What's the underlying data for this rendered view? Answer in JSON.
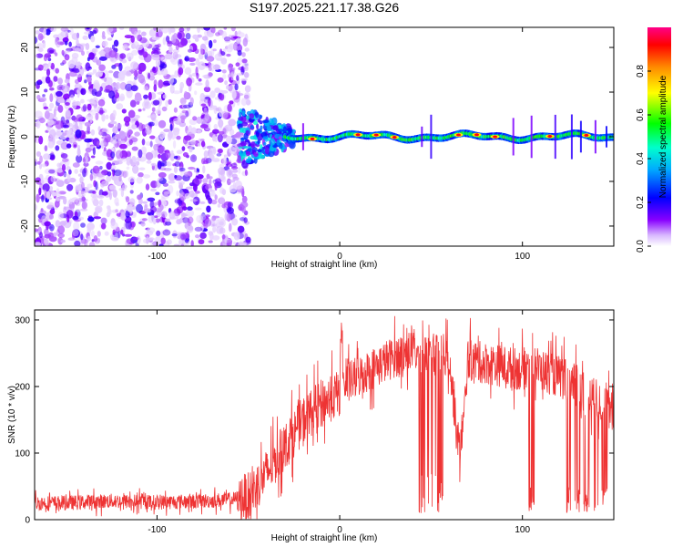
{
  "chart_data": [
    {
      "type": "heatmap",
      "title": "S197.2025.221.17.38.G26",
      "xlabel": "Height of straight line (km)",
      "ylabel": "Frequency (Hz)",
      "xlim": [
        -167,
        150
      ],
      "ylim": [
        -24.5,
        24.5
      ],
      "xticks": [
        -100,
        0,
        100
      ],
      "yticks": [
        -20,
        -10,
        0,
        10,
        20
      ],
      "colorbar": {
        "label": "Normalized spectral amplitude",
        "ticks": [
          0.0,
          0.2,
          0.4,
          0.6,
          0.8
        ],
        "range": [
          0,
          1
        ]
      },
      "ridge": {
        "frequency_hz": 0,
        "start_km": -30,
        "end_km": 150,
        "peak_km": [
          -15,
          10,
          20,
          30,
          65,
          75,
          85,
          115,
          135
        ]
      },
      "noise_region_km": [
        -167,
        -55
      ],
      "color_hex": [
        "#ffffff",
        "#8800ff",
        "#0000ff",
        "#00ffff",
        "#00ff00",
        "#ffff00",
        "#ff8800",
        "#ff0000",
        "#ff0088"
      ]
    },
    {
      "type": "line",
      "xlabel": "Height of straight line (km)",
      "ylabel": "SNR (10 * v/v)",
      "xlim": [
        -167,
        150
      ],
      "ylim": [
        0,
        315
      ],
      "xticks": [
        -100,
        0,
        100
      ],
      "yticks": [
        0,
        100,
        200,
        300
      ],
      "line_color": "#ee3333",
      "series": [
        {
          "name": "SNR",
          "x": [
            -167,
            -150,
            -125,
            -100,
            -75,
            -60,
            -50,
            -40,
            -30,
            -20,
            -10,
            0,
            1,
            2,
            10,
            20,
            30,
            40,
            45,
            55,
            60,
            65,
            68,
            70,
            80,
            90,
            100,
            105,
            110,
            120,
            130,
            140,
            145,
            150
          ],
          "y": [
            25,
            25,
            28,
            26,
            28,
            30,
            35,
            70,
            110,
            150,
            175,
            190,
            315,
            200,
            215,
            230,
            245,
            255,
            245,
            250,
            245,
            100,
            150,
            240,
            235,
            230,
            225,
            235,
            225,
            215,
            200,
            180,
            175,
            160
          ]
        }
      ],
      "dips_km": [
        45,
        55,
        105,
        125,
        130,
        135,
        140,
        145
      ]
    }
  ]
}
